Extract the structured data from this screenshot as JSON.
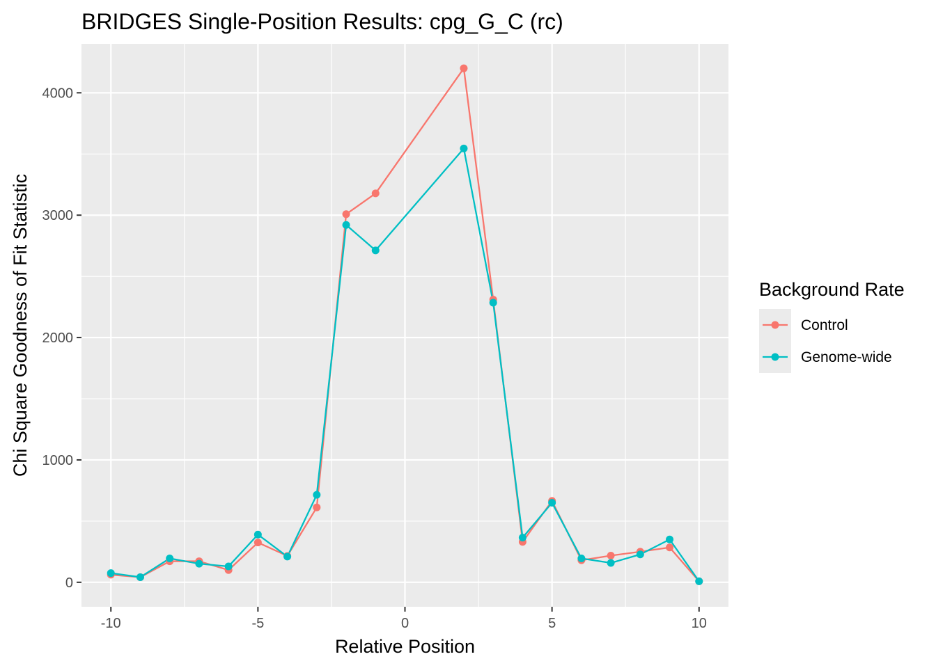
{
  "chart_data": {
    "type": "line",
    "title": "BRIDGES Single-Position Results: cpg_G_C (rc)",
    "xlabel": "Relative Position",
    "ylabel": "Chi Square Goodness of Fit Statistic",
    "xlim": [
      -11,
      11
    ],
    "ylim": [
      -200,
      4400
    ],
    "x_ticks": [
      -10,
      -5,
      0,
      5,
      10
    ],
    "x_tick_labels": [
      "-10",
      "-5",
      "0",
      "5",
      "10"
    ],
    "y_ticks": [
      0,
      1000,
      2000,
      3000,
      4000
    ],
    "y_tick_labels": [
      "0",
      "1000",
      "2000",
      "3000",
      "4000"
    ],
    "grid": true,
    "legend": {
      "title": "Background Rate",
      "placement": "right"
    },
    "x": [
      -10,
      -9,
      -8,
      -7,
      -6,
      -5,
      -4,
      -3,
      -2,
      -1,
      2,
      3,
      4,
      5,
      6,
      7,
      8,
      9,
      10
    ],
    "series": [
      {
        "name": "Control",
        "color": "#F8766D",
        "values": [
          62,
          42,
          172,
          172,
          100,
          325,
          215,
          612,
          3008,
          3178,
          4200,
          2310,
          330,
          665,
          180,
          218,
          250,
          285,
          8
        ]
      },
      {
        "name": "Genome-wide",
        "color": "#00BFC4",
        "values": [
          75,
          42,
          195,
          152,
          130,
          390,
          210,
          715,
          2920,
          2712,
          3545,
          2285,
          365,
          650,
          195,
          158,
          228,
          350,
          8
        ]
      }
    ]
  }
}
